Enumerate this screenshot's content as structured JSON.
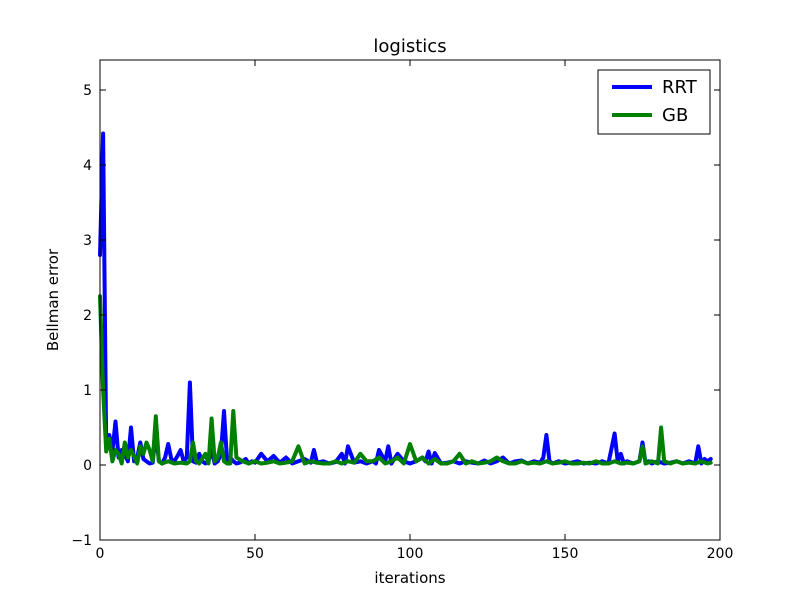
{
  "chart_data": {
    "type": "line",
    "title": "logistics",
    "xlabel": "iterations",
    "ylabel": "Bellman error",
    "xlim": [
      0,
      200
    ],
    "ylim": [
      -1,
      5.4
    ],
    "xticks": [
      0,
      50,
      100,
      150,
      200
    ],
    "yticks": [
      -1,
      0,
      1,
      2,
      3,
      4,
      5
    ],
    "xtick_labels": [
      "0",
      "50",
      "100",
      "150",
      "200"
    ],
    "ytick_labels": [
      "−1",
      "0",
      "1",
      "2",
      "3",
      "4",
      "5"
    ],
    "grid": false,
    "legend": {
      "position": "top-right"
    },
    "series": [
      {
        "name": "RRT",
        "color": "#0000ff",
        "x": [
          0,
          1,
          2,
          3,
          4,
          5,
          6,
          7,
          8,
          9,
          10,
          11,
          12,
          13,
          14,
          15,
          16,
          17,
          18,
          19,
          20,
          21,
          22,
          23,
          24,
          25,
          26,
          27,
          28,
          29,
          30,
          31,
          32,
          33,
          34,
          35,
          36,
          37,
          38,
          39,
          40,
          41,
          42,
          43,
          44,
          45,
          46,
          47,
          48,
          49,
          50,
          52,
          54,
          56,
          58,
          60,
          62,
          64,
          66,
          68,
          69,
          70,
          72,
          74,
          76,
          78,
          79,
          80,
          82,
          84,
          86,
          88,
          89,
          90,
          92,
          93,
          94,
          96,
          98,
          100,
          102,
          104,
          105,
          106,
          107,
          108,
          110,
          112,
          114,
          116,
          118,
          120,
          122,
          124,
          126,
          128,
          130,
          132,
          134,
          136,
          138,
          140,
          142,
          143,
          144,
          145,
          146,
          148,
          150,
          152,
          154,
          156,
          158,
          160,
          162,
          164,
          166,
          167,
          168,
          169,
          170,
          172,
          174,
          175,
          176,
          177,
          178,
          180,
          182,
          184,
          186,
          188,
          190,
          192,
          193,
          194,
          195,
          196,
          197
        ],
        "y": [
          2.8,
          4.42,
          0.25,
          0.4,
          0.18,
          0.58,
          0.1,
          0.2,
          0.15,
          0.05,
          0.5,
          0.05,
          0.1,
          0.3,
          0.08,
          0.05,
          0.02,
          0.03,
          0.45,
          0.05,
          0.02,
          0.1,
          0.28,
          0.08,
          0.05,
          0.12,
          0.2,
          0.05,
          0.1,
          1.1,
          0.05,
          0.03,
          0.15,
          0.05,
          0.02,
          0.05,
          0.2,
          0.02,
          0.05,
          0.15,
          0.72,
          0.05,
          0.1,
          0.05,
          0.02,
          0.03,
          0.05,
          0.08,
          0.02,
          0.05,
          0.03,
          0.15,
          0.05,
          0.12,
          0.03,
          0.1,
          0.02,
          0.05,
          0.08,
          0.03,
          0.2,
          0.03,
          0.05,
          0.02,
          0.04,
          0.15,
          0.02,
          0.25,
          0.03,
          0.05,
          0.02,
          0.05,
          0.02,
          0.2,
          0.05,
          0.25,
          0.02,
          0.15,
          0.05,
          0.02,
          0.05,
          0.1,
          0.05,
          0.18,
          0.02,
          0.16,
          0.02,
          0.03,
          0.05,
          0.02,
          0.05,
          0.03,
          0.02,
          0.06,
          0.02,
          0.05,
          0.1,
          0.02,
          0.05,
          0.06,
          0.02,
          0.05,
          0.03,
          0.1,
          0.4,
          0.05,
          0.02,
          0.05,
          0.02,
          0.03,
          0.05,
          0.02,
          0.03,
          0.02,
          0.05,
          0.02,
          0.42,
          0.05,
          0.15,
          0.02,
          0.05,
          0.02,
          0.05,
          0.3,
          0.02,
          0.05,
          0.02,
          0.05,
          0.02,
          0.03,
          0.05,
          0.02,
          0.05,
          0.02,
          0.25,
          0.02,
          0.08,
          0.05,
          0.08
        ]
      },
      {
        "name": "GB",
        "color": "#008000",
        "x": [
          0,
          1,
          2,
          3,
          4,
          5,
          6,
          7,
          8,
          9,
          10,
          11,
          12,
          13,
          14,
          15,
          16,
          17,
          18,
          19,
          20,
          22,
          24,
          26,
          28,
          29,
          30,
          31,
          32,
          34,
          35,
          36,
          37,
          38,
          39,
          40,
          41,
          42,
          43,
          44,
          46,
          48,
          50,
          52,
          54,
          56,
          58,
          60,
          62,
          64,
          66,
          68,
          70,
          72,
          74,
          76,
          78,
          80,
          82,
          84,
          86,
          88,
          90,
          92,
          94,
          96,
          98,
          100,
          102,
          104,
          106,
          108,
          110,
          112,
          114,
          116,
          118,
          120,
          122,
          124,
          126,
          128,
          130,
          132,
          134,
          136,
          138,
          140,
          142,
          144,
          146,
          148,
          150,
          152,
          154,
          156,
          158,
          160,
          162,
          164,
          166,
          168,
          170,
          172,
          174,
          175,
          176,
          178,
          180,
          181,
          182,
          184,
          186,
          188,
          190,
          192,
          194,
          196,
          197
        ],
        "y": [
          2.25,
          1.0,
          0.18,
          0.35,
          0.05,
          0.2,
          0.15,
          0.02,
          0.3,
          0.1,
          0.2,
          0.12,
          0.02,
          0.25,
          0.15,
          0.3,
          0.2,
          0.05,
          0.65,
          0.05,
          0.02,
          0.05,
          0.02,
          0.03,
          0.02,
          0.05,
          0.3,
          0.05,
          0.02,
          0.15,
          0.02,
          0.62,
          0.05,
          0.1,
          0.3,
          0.05,
          0.02,
          0.02,
          0.72,
          0.1,
          0.05,
          0.02,
          0.05,
          0.02,
          0.03,
          0.05,
          0.02,
          0.03,
          0.05,
          0.25,
          0.02,
          0.05,
          0.03,
          0.02,
          0.02,
          0.05,
          0.02,
          0.05,
          0.03,
          0.15,
          0.05,
          0.05,
          0.1,
          0.02,
          0.05,
          0.1,
          0.02,
          0.28,
          0.05,
          0.1,
          0.02,
          0.08,
          0.02,
          0.02,
          0.05,
          0.15,
          0.02,
          0.05,
          0.02,
          0.03,
          0.05,
          0.1,
          0.05,
          0.02,
          0.02,
          0.05,
          0.02,
          0.03,
          0.02,
          0.05,
          0.02,
          0.03,
          0.05,
          0.02,
          0.02,
          0.03,
          0.02,
          0.05,
          0.02,
          0.02,
          0.05,
          0.02,
          0.03,
          0.02,
          0.05,
          0.25,
          0.02,
          0.05,
          0.02,
          0.5,
          0.05,
          0.02,
          0.05,
          0.02,
          0.03,
          0.02,
          0.05,
          0.02,
          0.03
        ]
      }
    ]
  }
}
